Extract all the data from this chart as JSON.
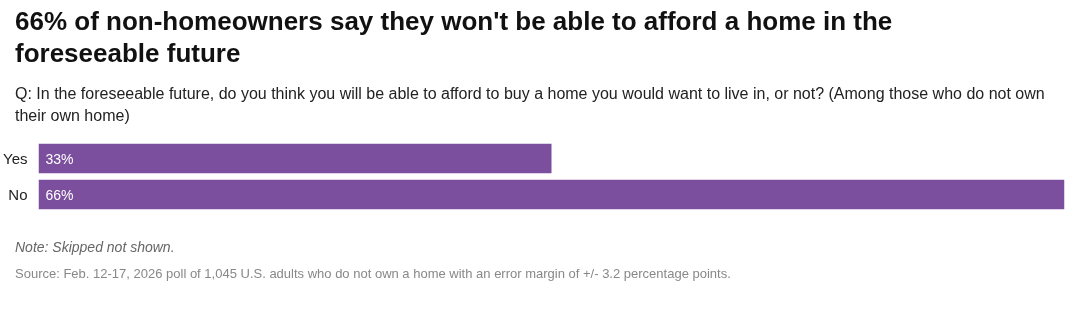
{
  "chart_data": {
    "type": "bar",
    "orientation": "horizontal",
    "title": "66% of non-homeowners say they won't be able to afford a home in the foreseeable future",
    "subtitle": "Q: In the foreseeable future, do you think you will be able to afford to buy a home you would want to live in, or not? (Among those who do not own their own home)",
    "categories": [
      "Yes",
      "No"
    ],
    "series": [
      {
        "color": "#7b4f9e",
        "values": [
          33,
          66
        ],
        "value_labels": [
          "33%",
          "66%"
        ]
      }
    ],
    "grid": false,
    "annotations": [
      "Note: Skipped not shown.",
      "Source: Feb. 12-17, 2026 poll of 1,045 U.S. adults who do not own a home with an error margin of +/- 3.2 percentage points."
    ]
  }
}
